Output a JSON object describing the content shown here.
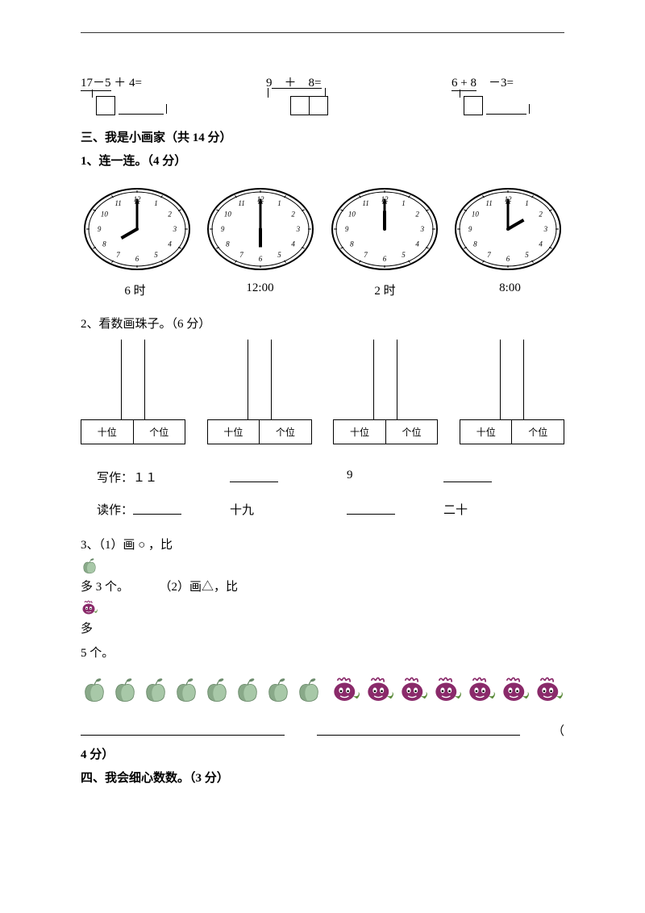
{
  "equations": [
    {
      "text": "17－5 ＋ 4=",
      "underlineFirst": true
    },
    {
      "text": "9　＋　8=",
      "underlineFirst": false
    },
    {
      "text": "6 + 8　－3=",
      "underlineFirst": true
    }
  ],
  "section3": {
    "title": "三、我是小画家（共 14 分）",
    "q1": {
      "title": "1、连一连。（4 分）",
      "clocks": [
        {
          "hour": 8,
          "minute": 0
        },
        {
          "hour": 6,
          "minute": 0
        },
        {
          "hour": 12,
          "minute": 0
        },
        {
          "hour": 2,
          "minute": 0
        }
      ],
      "labels": [
        "6 时",
        "12:00",
        "2 时",
        "8:00"
      ]
    },
    "q2": {
      "title": "2、看数画珠子。（6 分）",
      "places": {
        "tens": "十位",
        "ones": "个位"
      },
      "write_label": "写作：",
      "read_label": "读作：",
      "write_values": [
        "１１",
        "",
        "9",
        ""
      ],
      "read_values": [
        "",
        "十九",
        "",
        "二十"
      ]
    },
    "q3": {
      "part1": "3、（1）画 ○ ，比",
      "part1b": "多 3 个。",
      "part2": "（2）画△，比",
      "part2b": "多",
      "part2c": "5 个。",
      "apple_count": 8,
      "turnip_count": 7,
      "points_suffix": "（",
      "points": "4 分）"
    }
  },
  "section4": {
    "title": "四、我会细心数数。（3 分）"
  },
  "colors": {
    "apple_body": "#a8c8a8",
    "apple_dark": "#6a8a6a",
    "turnip_body": "#8a2a6a",
    "turnip_leaf": "#5a8a3a",
    "clock_face": "#ffffff",
    "clock_stroke": "#000000"
  }
}
